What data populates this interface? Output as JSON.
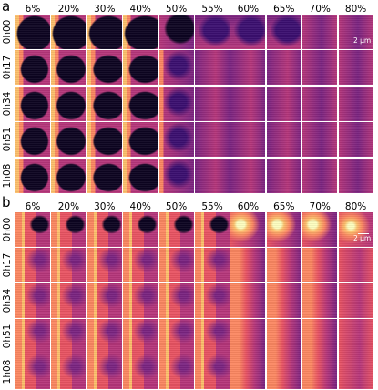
{
  "panels": [
    {
      "letter": "a",
      "columns": [
        "6%",
        "20%",
        "30%",
        "40%",
        "50%",
        "55%",
        "60%",
        "65%",
        "70%",
        "80%"
      ],
      "rows": [
        "0h00",
        "0h17",
        "0h34",
        "0h51",
        "1h08"
      ],
      "scale_bar_label": "2 µm",
      "scale_bar_length_um": 2
    },
    {
      "letter": "b",
      "columns": [
        "6%",
        "20%",
        "30%",
        "40%",
        "50%",
        "55%",
        "60%",
        "65%",
        "70%",
        "80%"
      ],
      "rows": [
        "0h00",
        "0h17",
        "0h34",
        "0h51",
        "1h08"
      ],
      "scale_bar_label": "2 µm",
      "scale_bar_length_um": 2
    }
  ],
  "colormap": [
    "#0d0421",
    "#3b0f70",
    "#7a2481",
    "#b5367a",
    "#e85362",
    "#fb8761",
    "#fcbf6b",
    "#fcfdbf"
  ]
}
